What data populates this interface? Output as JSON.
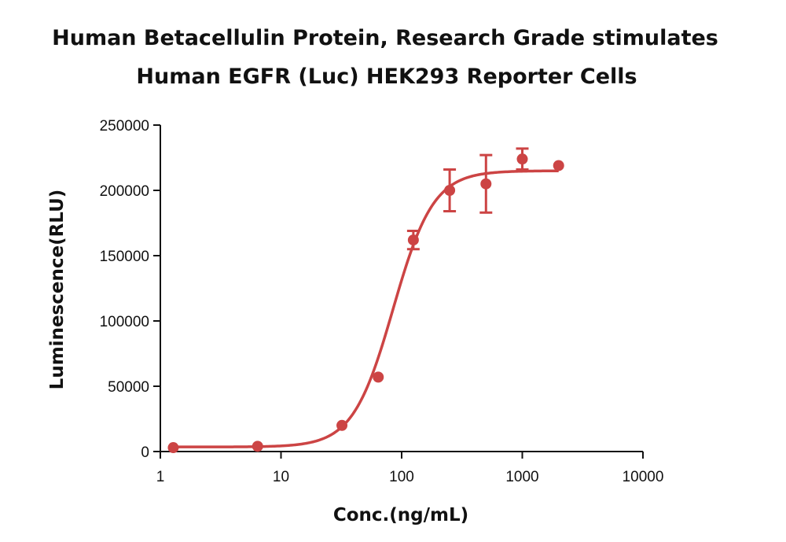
{
  "chart_data": {
    "type": "scatter",
    "title_lines": [
      "Human Betacellulin Protein, Research Grade stimulates",
      "Human EGFR (Luc) HEK293 Reporter Cells"
    ],
    "xlabel": "Conc.(ng/mL)",
    "ylabel": "Luminescence(RLU)",
    "x_scale": "log",
    "xlim": [
      1,
      10000
    ],
    "ylim": [
      0,
      250000
    ],
    "x_ticks": [
      1,
      10,
      100,
      1000,
      10000
    ],
    "x_tick_labels": [
      "1",
      "10",
      "100",
      "1000",
      "10000"
    ],
    "y_ticks": [
      0,
      50000,
      100000,
      150000,
      200000,
      250000
    ],
    "y_tick_labels": [
      "0",
      "50000",
      "100000",
      "150000",
      "200000",
      "250000"
    ],
    "grid": false,
    "legend": "none",
    "color": "#cc4444",
    "series": [
      {
        "points": [
          {
            "x": 1.28,
            "y": 3000,
            "err": 0
          },
          {
            "x": 6.4,
            "y": 4000,
            "err": 0
          },
          {
            "x": 32,
            "y": 20000,
            "err": 0
          },
          {
            "x": 64,
            "y": 57000,
            "err": 0
          },
          {
            "x": 125,
            "y": 162000,
            "err": 7000
          },
          {
            "x": 250,
            "y": 200000,
            "err": 16000
          },
          {
            "x": 500,
            "y": 205000,
            "err": 22000
          },
          {
            "x": 1000,
            "y": 224000,
            "err": 8000
          },
          {
            "x": 2000,
            "y": 219000,
            "err": 0
          }
        ],
        "fit": {
          "bottom": 3500,
          "top": 215000,
          "ec50": 85,
          "hill": 2.6
        }
      }
    ]
  }
}
